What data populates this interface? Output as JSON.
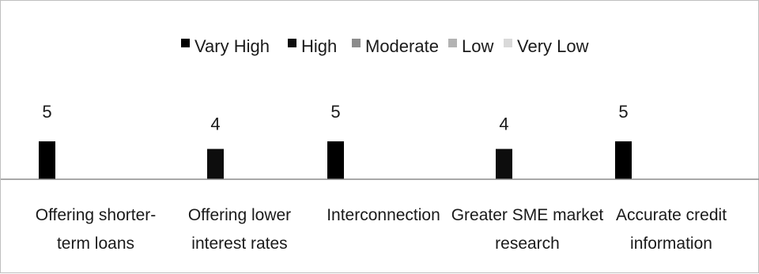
{
  "chart_data": {
    "type": "bar",
    "title": "",
    "xlabel": "",
    "ylabel": "",
    "categories": [
      [
        "Offering shorter-",
        "term loans"
      ],
      [
        "Offering lower",
        "interest rates"
      ],
      [
        "Interconnection"
      ],
      [
        "Greater SME market",
        "research"
      ],
      [
        "Accurate credit",
        "information"
      ]
    ],
    "category_names": [
      "Offering shorter-term loans",
      "Offering lower interest rates",
      "Interconnection",
      "Greater SME market research",
      "Accurate credit information"
    ],
    "series": [
      {
        "name": "Vary High",
        "color": "#000000",
        "values": [
          5,
          null,
          5,
          null,
          5
        ]
      },
      {
        "name": "High",
        "color": "#0d0d0d",
        "values": [
          null,
          4,
          null,
          4,
          null
        ]
      },
      {
        "name": "Moderate",
        "color": "#8c8c8c",
        "values": [
          null,
          null,
          null,
          null,
          null
        ]
      },
      {
        "name": "Low",
        "color": "#b3b3b3",
        "values": [
          null,
          null,
          null,
          null,
          null
        ]
      },
      {
        "name": "Very Low",
        "color": "#d9d9d9",
        "values": [
          null,
          null,
          null,
          null,
          null
        ]
      }
    ],
    "legend_position": "top",
    "grid": false
  }
}
